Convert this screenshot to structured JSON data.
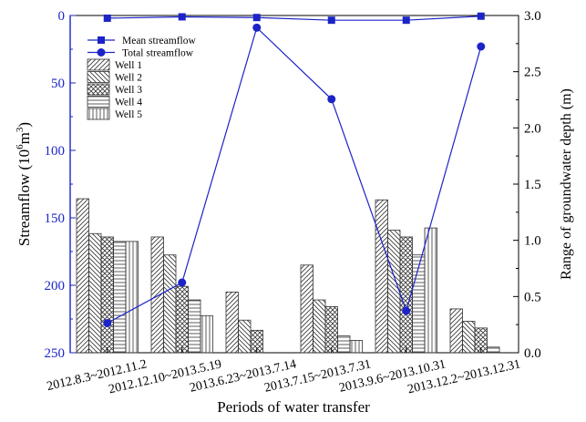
{
  "chart_data": {
    "type": "bar",
    "xlabel": "Periods of water transfer",
    "ylabel_left_main": "Streamflow (10",
    "ylabel_left_sup": "6",
    "ylabel_left_unit": "m",
    "ylabel_left_sup2": "3",
    "ylabel_left_close": ")",
    "ylabel_right": "Range of groundwater depth (m)",
    "categories": [
      "2012.8.3~2012.11.2",
      "2012.12.10~2013.5.19",
      "2013.6.23~2013.7.14",
      "2013.7.15~2013.7.31",
      "2013.9.6~2013.10.31",
      "2013.12.2~2013.12.31"
    ],
    "left_axis": {
      "range": [
        0,
        250
      ],
      "inverted": true,
      "ticks": [
        0,
        50,
        100,
        150,
        200,
        250
      ]
    },
    "right_axis": {
      "range": [
        0,
        3
      ],
      "ticks": [
        "0.0",
        "0.5",
        "1.0",
        "1.5",
        "2.0",
        "2.5",
        "3.0"
      ]
    },
    "bar_series": [
      {
        "name": "Well 1",
        "pattern": "diag-right",
        "axis": "right",
        "values": [
          1.37,
          1.03,
          0.54,
          0.78,
          1.36,
          0.39
        ]
      },
      {
        "name": "Well 2",
        "pattern": "diag-left",
        "axis": "right",
        "values": [
          1.06,
          0.87,
          0.29,
          0.47,
          1.09,
          0.28
        ]
      },
      {
        "name": "Well 3",
        "pattern": "crosshatch",
        "axis": "right",
        "values": [
          1.03,
          0.59,
          0.2,
          0.41,
          1.03,
          0.22
        ]
      },
      {
        "name": "Well 4",
        "pattern": "horizontal",
        "axis": "right",
        "values": [
          0.99,
          0.47,
          0.0,
          0.15,
          0.87,
          0.05
        ]
      },
      {
        "name": "Well 5",
        "pattern": "vertical",
        "axis": "right",
        "values": [
          0.99,
          0.33,
          0.0,
          0.11,
          1.11,
          0.0
        ]
      }
    ],
    "line_series": [
      {
        "name": "Mean streamflow",
        "marker": "square",
        "axis": "left",
        "values": [
          2,
          1,
          1.5,
          3.5,
          3.5,
          0.5
        ]
      },
      {
        "name": "Total streamflow",
        "marker": "circle",
        "axis": "left",
        "values": [
          228,
          198,
          9,
          62,
          219,
          23
        ]
      }
    ],
    "legend_position": "top-left",
    "grid": false,
    "colors": {
      "line": "#1c24c8",
      "marker": "#1c24c8",
      "axis_left": "#1c24c8",
      "axis_right": "#000000",
      "bars": "#333333"
    }
  }
}
